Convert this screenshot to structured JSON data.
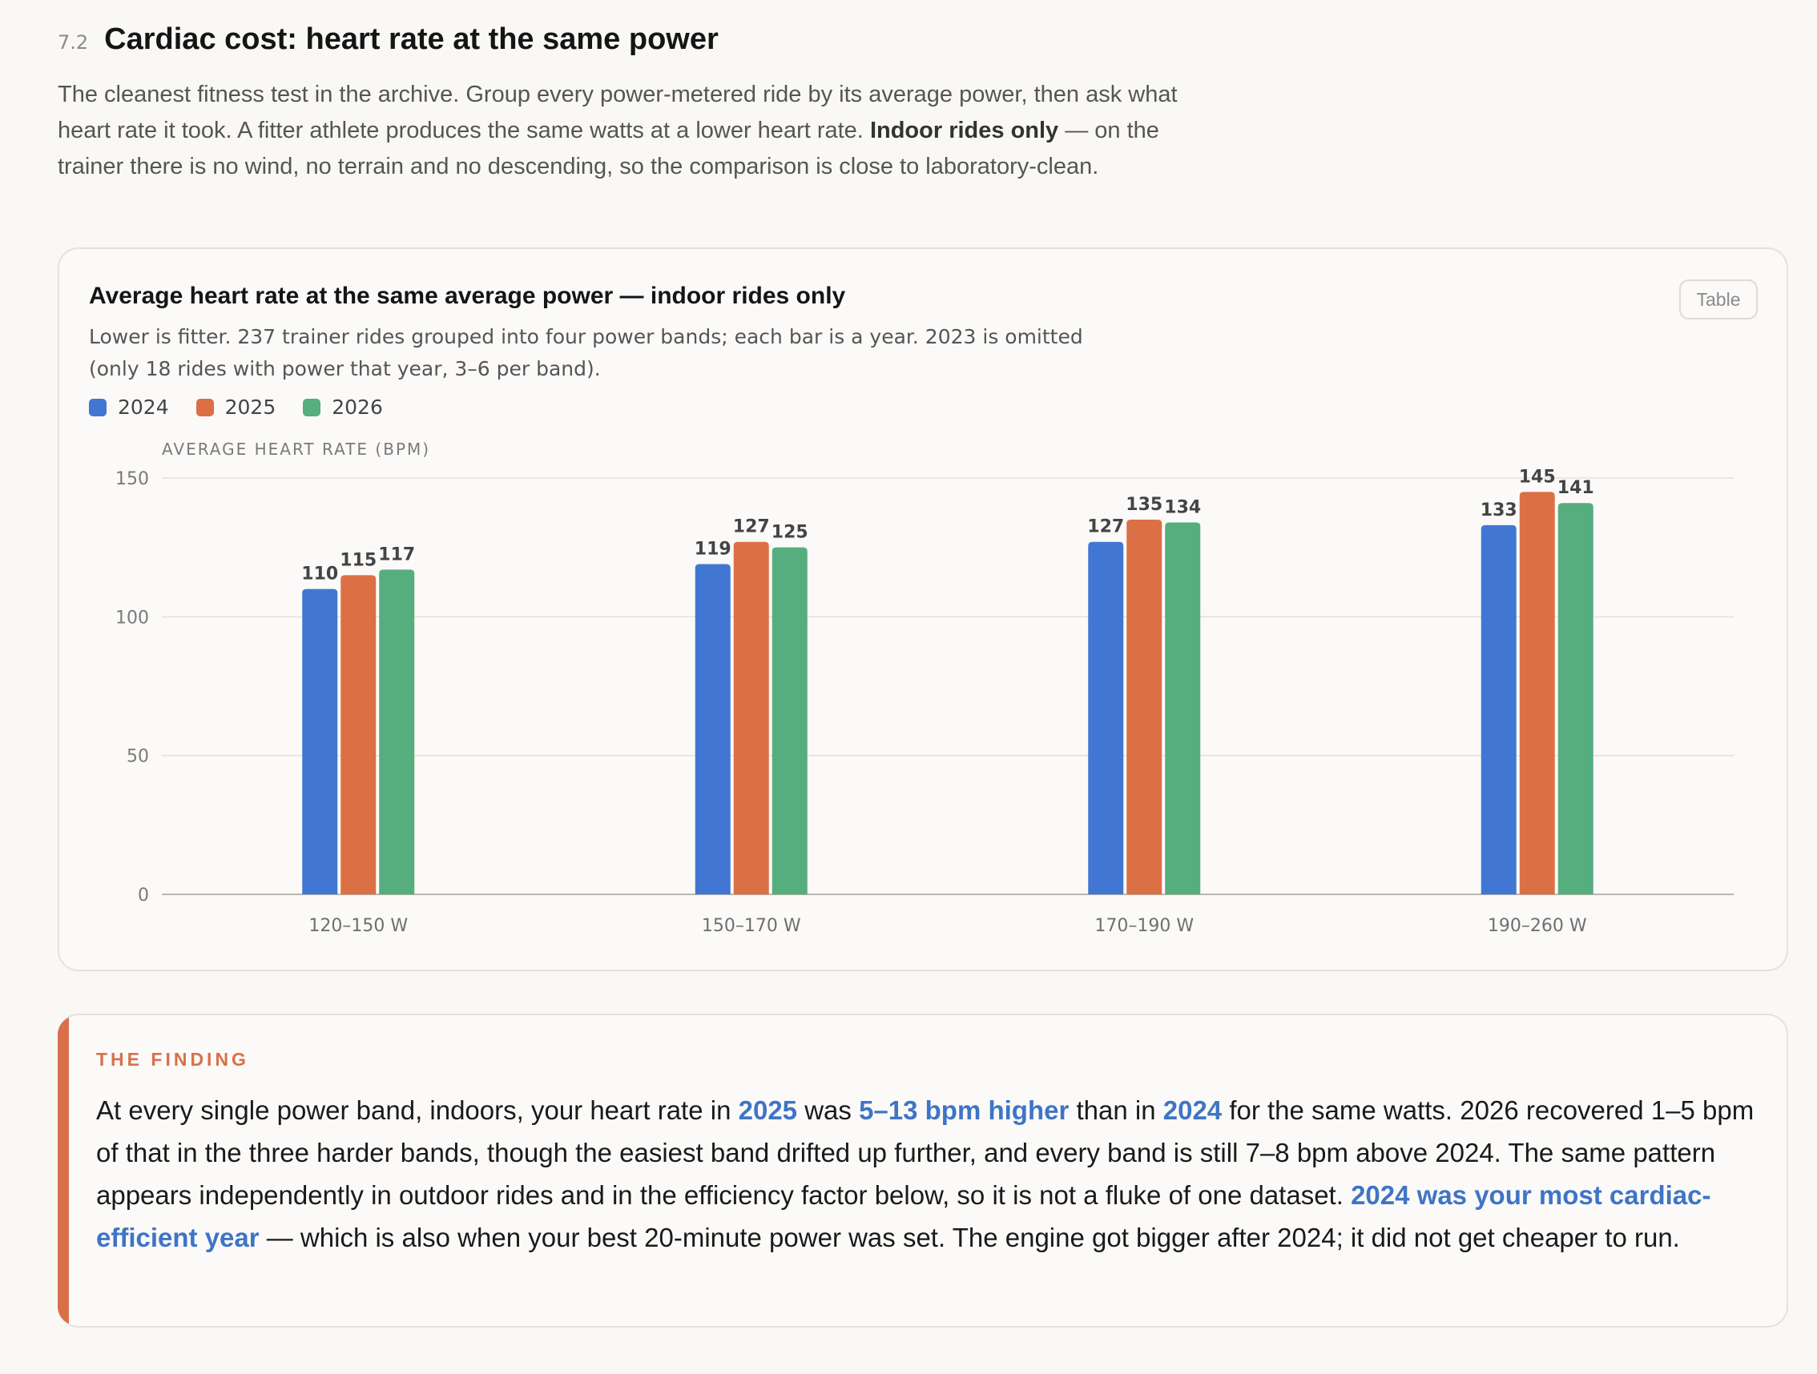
{
  "section": {
    "number": "7.2",
    "title": "Cardiac cost: heart rate at the same power",
    "intro_pre": "The cleanest fitness test in the archive. Group every power-metered ride by its average power, then ask what heart rate it took. A fitter athlete produces the same watts at a lower heart rate. ",
    "intro_bold": "Indoor rides only",
    "intro_post": " — on the trainer there is no wind, no terrain and no descending, so the comparison is close to laboratory-clean."
  },
  "table_button_label": "Table",
  "chart_data": {
    "type": "bar",
    "title": "Average heart rate at the same average power — indoor rides only",
    "subtitle": "Lower is fitter. 237 trainer rides grouped into four power bands; each bar is a year. 2023 is omitted (only 18 rides with power that year, 3–6 per band).",
    "ylabel": "AVERAGE HEART RATE (BPM)",
    "xlabel": "",
    "ylim": [
      0,
      150
    ],
    "yticks": [
      0,
      50,
      100,
      150
    ],
    "grid": true,
    "legend_position": "top-left",
    "categories": [
      "120–150 W",
      "150–170 W",
      "170–190 W",
      "190–260 W"
    ],
    "series": [
      {
        "name": "2024",
        "color": "#4177d2",
        "values": [
          110,
          119,
          127,
          133
        ]
      },
      {
        "name": "2025",
        "color": "#dc7045",
        "values": [
          115,
          127,
          135,
          145
        ]
      },
      {
        "name": "2026",
        "color": "#56ad7e",
        "values": [
          117,
          125,
          134,
          141
        ]
      }
    ]
  },
  "finding": {
    "label": "THE FINDING",
    "t1": "At every single power band, indoors, your heart rate in ",
    "h1": "2025",
    "t2": " was ",
    "h2": "5–13 bpm higher",
    "t3": " than in ",
    "h3": "2024",
    "t4": " for the same watts. 2026 recovered 1–5 bpm of that in the three harder bands, though the easiest band drifted up further, and every band is still 7–8 bpm above 2024. The same pattern appears independently in outdoor rides and in the efficiency factor below, so it is not a fluke of one dataset. ",
    "h4": "2024 was your most cardiac-efficient year",
    "t5": " — which is also when your best 20-minute power was set. The engine got bigger after 2024; it did not get cheaper to run."
  },
  "colors": {
    "accent": "#d9704a",
    "link": "#3f74c6"
  }
}
